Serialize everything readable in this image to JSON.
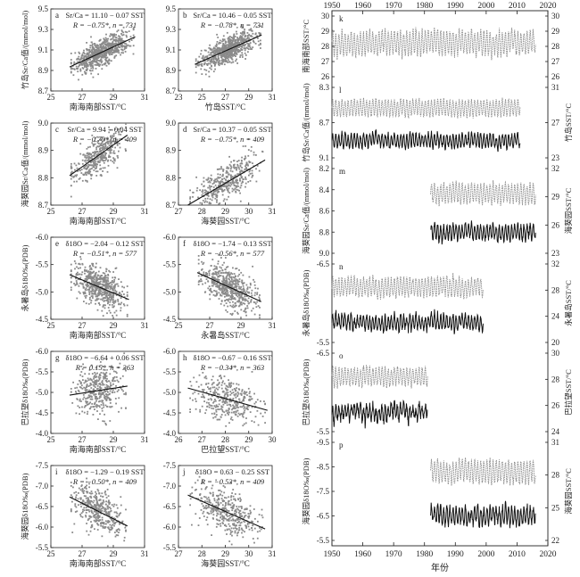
{
  "figure": {
    "x_axis_label_time": "年份",
    "time_top_ticks": [
      "1950",
      "1960",
      "1970",
      "1980",
      "1990",
      "2000",
      "2010",
      "2020"
    ],
    "time_bottom_ticks": [
      "1950",
      "1960",
      "1970",
      "1980",
      "1990",
      "2000",
      "2010",
      "2020"
    ]
  },
  "chart_data": [
    {
      "id": "a",
      "type": "scatter",
      "letter": "a",
      "eq": "Sr/Ca = 11.10 − 0.07 SST",
      "stat": "R = −0.75*, n = 731",
      "xlabel": "南海南部SST/°C",
      "ylabel": "竹岛Sr/Ca值/(mmol/mol)",
      "xlim": [
        25,
        31
      ],
      "ylim": [
        9.5,
        8.7
      ],
      "yreversed": true,
      "xticks": [
        "25",
        "27",
        "29",
        "31"
      ],
      "yticks": [
        "9.5",
        "9.3",
        "9.1",
        "8.9",
        "8.7"
      ],
      "slope": -0.07,
      "intercept": 11.1,
      "n": 731,
      "x_range": [
        26.3,
        30.3
      ],
      "y_sd": 0.06
    },
    {
      "id": "b",
      "type": "scatter",
      "letter": "b",
      "eq": "Sr/Ca = 10.46 − 0.05 SST",
      "stat": "R = −0.78*, n = 731",
      "xlabel": "竹岛SST/°C",
      "ylabel": "",
      "xlim": [
        23,
        31
      ],
      "ylim": [
        9.5,
        8.7
      ],
      "yreversed": true,
      "xticks": [
        "23",
        "25",
        "27",
        "29",
        "31"
      ],
      "yticks": [
        "9.5",
        "9.3",
        "9.1",
        "8.9",
        "8.7"
      ],
      "slope": -0.05,
      "intercept": 10.46,
      "n": 731,
      "x_range": [
        24.5,
        30.0
      ],
      "y_sd": 0.06
    },
    {
      "id": "c",
      "type": "scatter",
      "letter": "c",
      "eq": "Sr/Ca = 9.94 − 0.04 SST",
      "stat": "R = −0.70*, n = 409",
      "xlabel": "南海南部SST/°C",
      "ylabel": "海葵园Sr/Ca值/(mmol/mol)",
      "xlim": [
        25,
        31
      ],
      "ylim": [
        9.0,
        8.7
      ],
      "yreversed": true,
      "xticks": [
        "25",
        "27",
        "29",
        "31"
      ],
      "yticks": [
        "9.0",
        "8.9",
        "8.8",
        "8.7"
      ],
      "slope": -0.04,
      "intercept": 9.94,
      "n": 409,
      "x_range": [
        26.3,
        29.8
      ],
      "y_sd": 0.035
    },
    {
      "id": "d",
      "type": "scatter",
      "letter": "d",
      "eq": "Sr/Ca = 10.37 − 0.05 SST",
      "stat": "R = −0.75*, n = 409",
      "xlabel": "海葵园SST/°C",
      "ylabel": "",
      "xlim": [
        27,
        31
      ],
      "ylim": [
        9.0,
        8.7
      ],
      "yreversed": true,
      "xticks": [
        "27",
        "28",
        "29",
        "30",
        "31"
      ],
      "yticks": [
        "9.0",
        "8.9",
        "8.8",
        "8.7"
      ],
      "slope": -0.05,
      "intercept": 10.37,
      "n": 409,
      "x_range": [
        27.5,
        30.6
      ],
      "y_sd": 0.035
    },
    {
      "id": "e",
      "type": "scatter",
      "letter": "e",
      "eq": "δ18O = −2.04 − 0.12 SST",
      "stat": "R = −0.51*, n = 577",
      "xlabel": "南海南部SST/°C",
      "ylabel": "永暑岛δ18O‰(PDB)",
      "xlim": [
        25,
        31
      ],
      "ylim": [
        -6.0,
        -4.5
      ],
      "yreversed": false,
      "xticks": [
        "25",
        "27",
        "29",
        "31"
      ],
      "yticks": [
        "-6.0",
        "-5.5",
        "-5.0",
        "-4.5"
      ],
      "slope": -0.12,
      "intercept": -2.04,
      "n": 577,
      "x_range": [
        26.3,
        29.9
      ],
      "y_sd": 0.18
    },
    {
      "id": "f",
      "type": "scatter",
      "letter": "f",
      "eq": "δ18O = −1.74 − 0.13 SST",
      "stat": "R = −0.56*, n = 577",
      "xlabel": "永暑岛SST/°C",
      "ylabel": "",
      "xlim": [
        25,
        31
      ],
      "ylim": [
        -6.0,
        -4.5
      ],
      "yreversed": false,
      "xticks": [
        "25",
        "27",
        "29",
        "31"
      ],
      "yticks": [
        "-6.0",
        "-5.5",
        "-5.0",
        "-4.5"
      ],
      "slope": -0.13,
      "intercept": -1.74,
      "n": 577,
      "x_range": [
        26.3,
        30.2
      ],
      "y_sd": 0.18
    },
    {
      "id": "g",
      "type": "scatter",
      "letter": "g",
      "eq": "δ18O = −6.64 + 0.06 SST",
      "stat": "R = 0.15*, n = 363",
      "xlabel": "南海南部SST/°C",
      "ylabel": "巴拉望δ18O‰(PDB)",
      "xlim": [
        25,
        31
      ],
      "ylim": [
        -6.0,
        -4.0
      ],
      "yreversed": false,
      "xticks": [
        "25",
        "27",
        "29",
        "31"
      ],
      "yticks": [
        "-6.0",
        "-5.5",
        "-5.0",
        "-4.5",
        "-4.0"
      ],
      "slope": 0.06,
      "intercept": -6.64,
      "n": 363,
      "x_range": [
        26.3,
        29.8
      ],
      "y_sd": 0.28
    },
    {
      "id": "h",
      "type": "scatter",
      "letter": "h",
      "eq": "δ18O = −0.67 − 0.16 SST",
      "stat": "R = −0.34*, n = 363",
      "xlabel": "巴拉望SST/°C",
      "ylabel": "",
      "xlim": [
        26,
        30
      ],
      "ylim": [
        -6.0,
        -4.0
      ],
      "yreversed": false,
      "xticks": [
        "26",
        "27",
        "28",
        "29",
        "30"
      ],
      "yticks": [
        "-6.0",
        "-5.5",
        "-5.0",
        "-4.5",
        "-4.0"
      ],
      "slope": -0.16,
      "intercept": -0.67,
      "n": 363,
      "x_range": [
        26.5,
        29.7
      ],
      "y_sd": 0.28
    },
    {
      "id": "i",
      "type": "scatter",
      "letter": "i",
      "eq": "δ18O = −1.29 − 0.19 SST",
      "stat": "R = −0.50*, n = 409",
      "xlabel": "南海南部SST/°C",
      "ylabel": "海葵园δ18O‰(PDB)",
      "xlim": [
        25,
        31
      ],
      "ylim": [
        -7.5,
        -5.5
      ],
      "yreversed": false,
      "xticks": [
        "25",
        "27",
        "29",
        "31"
      ],
      "yticks": [
        "-7.5",
        "-7.0",
        "-6.5",
        "-6.0",
        "-5.5"
      ],
      "slope": -0.19,
      "intercept": -1.29,
      "n": 409,
      "x_range": [
        26.3,
        29.8
      ],
      "y_sd": 0.25
    },
    {
      "id": "j",
      "type": "scatter",
      "letter": "j",
      "eq": "δ18O = 0.63 − 0.25 SST",
      "stat": "R = −0.53*, n = 409",
      "xlabel": "海葵园SST/°C",
      "ylabel": "",
      "xlim": [
        27,
        31
      ],
      "ylim": [
        -7.5,
        -5.5
      ],
      "yreversed": false,
      "xticks": [
        "27",
        "28",
        "29",
        "30",
        "31"
      ],
      "yticks": [
        "-7.5",
        "-7.0",
        "-6.5",
        "-6.0",
        "-5.5"
      ],
      "slope": -0.25,
      "intercept": 0.63,
      "n": 409,
      "x_range": [
        27.5,
        30.6
      ],
      "y_sd": 0.25
    },
    {
      "id": "k",
      "type": "line",
      "letter": "k",
      "left_label": "南海南部SST/°C",
      "right_label": "",
      "left_ticks": [
        "30",
        "29",
        "28",
        "27",
        "26"
      ],
      "right_ticks": [
        "30",
        "29",
        "28",
        "27",
        "26"
      ],
      "series": [
        {
          "style": "gray",
          "start": 1950,
          "end": 2016,
          "base": 28.0,
          "amp": 1.3,
          "noise": 0.3
        }
      ]
    },
    {
      "id": "l",
      "type": "line",
      "letter": "l",
      "left_label": "竹岛Sr/Ca值/(mmol/mol)",
      "right_label": "竹岛SST/°C",
      "left_ticks": [
        "8.3",
        "8.7",
        "9.1"
      ],
      "right_ticks": [
        "31",
        "27",
        "23"
      ],
      "series": [
        {
          "style": "gray",
          "start": 1950,
          "end": 2011,
          "base": 27.5,
          "amp": 1.8,
          "noise": 0.3
        },
        {
          "style": "black",
          "start": 1950,
          "end": 2011,
          "base": 24.3,
          "amp": 1.1,
          "noise": 0.4
        }
      ]
    },
    {
      "id": "m",
      "type": "line",
      "letter": "m",
      "left_label": "海葵园Sr/Ca值/(mmol/mol)",
      "right_label": "海葵园SST/°C",
      "left_ticks": [
        "8.2",
        "8.4",
        "8.6",
        "8.8",
        "9.0"
      ],
      "right_ticks": [
        "32",
        "29",
        "26",
        "23"
      ],
      "series": [
        {
          "style": "gray",
          "start": 1982,
          "end": 2016,
          "base": 29.0,
          "amp": 1.3,
          "noise": 0.3
        },
        {
          "style": "black",
          "start": 1982,
          "end": 2016,
          "base": 25.3,
          "amp": 1.1,
          "noise": 0.4
        }
      ]
    },
    {
      "id": "n",
      "type": "line",
      "letter": "n",
      "left_label": "永暑岛δ18O‰(PDB)",
      "right_label": "永暑岛SST/°C",
      "left_ticks": [
        "-6.5",
        "-5.5"
      ],
      "right_ticks": [
        "32",
        "28",
        "24",
        "20"
      ],
      "series": [
        {
          "style": "gray",
          "start": 1950,
          "end": 1999,
          "base": 28.3,
          "amp": 1.1,
          "noise": 0.3
        },
        {
          "style": "black",
          "start": 1950,
          "end": 1999,
          "base": 24.0,
          "amp": 0.9,
          "noise": 0.4
        }
      ]
    },
    {
      "id": "o",
      "type": "line",
      "letter": "o",
      "left_label": "巴拉望δ18O‰(PDB)",
      "right_label": "巴拉望SST/°C",
      "left_ticks": [
        "-6.5",
        "-5.5"
      ],
      "right_ticks": [
        "30",
        "28",
        "26",
        "24"
      ],
      "series": [
        {
          "style": "gray",
          "start": 1950,
          "end": 1981,
          "base": 28.3,
          "amp": 0.8,
          "noise": 0.2
        },
        {
          "style": "black",
          "start": 1950,
          "end": 1981,
          "base": 25.5,
          "amp": 0.6,
          "noise": 0.35
        }
      ]
    },
    {
      "id": "p",
      "type": "line",
      "letter": "p",
      "left_label": "海葵园δ18O‰(PDB)",
      "right_label": "海葵园SST/°C",
      "left_ticks": [
        "-9.5",
        "-8.5",
        "-7.5",
        "-6.5",
        "-5.5"
      ],
      "right_ticks": [
        "31",
        "28",
        "25",
        "22"
      ],
      "series": [
        {
          "style": "gray",
          "start": 1982,
          "end": 2016,
          "base": 28.5,
          "amp": 1.3,
          "noise": 0.3
        },
        {
          "style": "black",
          "start": 1982,
          "end": 2016,
          "base": 24.8,
          "amp": 1.0,
          "noise": 0.4
        }
      ]
    }
  ]
}
